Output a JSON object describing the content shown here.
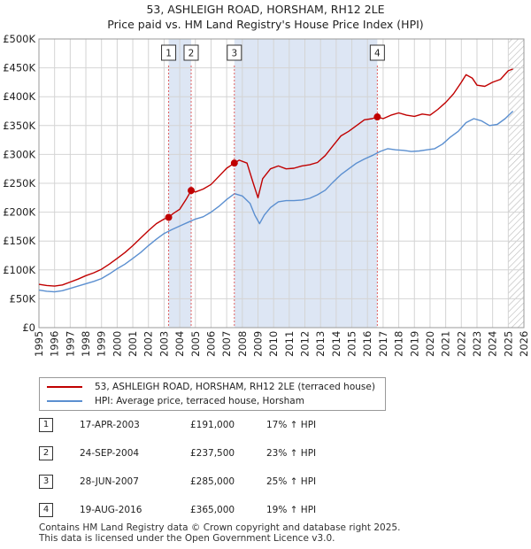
{
  "title": {
    "line1": "53, ASHLEIGH ROAD, HORSHAM, RH12 2LE",
    "line2": "Price paid vs. HM Land Registry's House Price Index (HPI)"
  },
  "legend": {
    "series_red": "53, ASHLEIGH ROAD, HORSHAM, RH12 2LE (terraced house)",
    "series_blue": "HPI: Average price, terraced house, Horsham"
  },
  "colors": {
    "red": "#c00000",
    "blue": "#5b8fd0",
    "shade": "#dde6f4",
    "marker_line": "#e06060"
  },
  "sales": [
    {
      "num": "1",
      "date": "17-APR-2003",
      "price": "£191,000",
      "hpi": "17% ↑ HPI"
    },
    {
      "num": "2",
      "date": "24-SEP-2004",
      "price": "£237,500",
      "hpi": "23% ↑ HPI"
    },
    {
      "num": "3",
      "date": "28-JUN-2007",
      "price": "£285,000",
      "hpi": "25% ↑ HPI"
    },
    {
      "num": "4",
      "date": "19-AUG-2016",
      "price": "£365,000",
      "hpi": "19% ↑ HPI"
    }
  ],
  "footer": {
    "line1": "Contains HM Land Registry data © Crown copyright and database right 2025.",
    "line2": "This data is licensed under the Open Government Licence v3.0."
  },
  "chart_data": {
    "type": "line",
    "title": "53, ASHLEIGH ROAD, HORSHAM, RH12 2LE — Price paid vs. HM Land Registry's House Price Index (HPI)",
    "xlabel": "",
    "ylabel": "",
    "xlim": [
      1995,
      2026
    ],
    "ylim": [
      0,
      500000
    ],
    "x_ticks": [
      1995,
      1996,
      1997,
      1998,
      1999,
      2000,
      2001,
      2002,
      2003,
      2004,
      2005,
      2006,
      2007,
      2008,
      2009,
      2010,
      2011,
      2012,
      2013,
      2014,
      2015,
      2016,
      2017,
      2018,
      2019,
      2020,
      2021,
      2022,
      2023,
      2024,
      2025,
      2026
    ],
    "y_ticks": [
      {
        "value": 0,
        "label": "£0"
      },
      {
        "value": 50000,
        "label": "£50K"
      },
      {
        "value": 100000,
        "label": "£100K"
      },
      {
        "value": 150000,
        "label": "£150K"
      },
      {
        "value": 200000,
        "label": "£200K"
      },
      {
        "value": 250000,
        "label": "£250K"
      },
      {
        "value": 300000,
        "label": "£300K"
      },
      {
        "value": 350000,
        "label": "£350K"
      },
      {
        "value": 400000,
        "label": "£400K"
      },
      {
        "value": 450000,
        "label": "£450K"
      },
      {
        "value": 500000,
        "label": "£500K"
      }
    ],
    "shaded_ranges": [
      [
        2003.29,
        2004.73
      ],
      [
        2007.49,
        2016.63
      ]
    ],
    "hatched_from": 2025.0,
    "markers": [
      {
        "label": "1",
        "x": 2003.29,
        "y": 191000
      },
      {
        "label": "2",
        "x": 2004.73,
        "y": 237500
      },
      {
        "label": "3",
        "x": 2007.49,
        "y": 285000
      },
      {
        "label": "4",
        "x": 2016.63,
        "y": 365000
      }
    ],
    "series": [
      {
        "name": "53, ASHLEIGH ROAD, HORSHAM, RH12 2LE (terraced house)",
        "color": "#c00000",
        "x": [
          1995,
          1995.5,
          1996,
          1996.5,
          1997,
          1997.5,
          1998,
          1998.5,
          1999,
          1999.5,
          2000,
          2000.5,
          2001,
          2001.5,
          2002,
          2002.5,
          2003,
          2003.29,
          2003.6,
          2004,
          2004.4,
          2004.73,
          2005,
          2005.5,
          2006,
          2006.5,
          2007,
          2007.49,
          2007.8,
          2008.3,
          2008.7,
          2009.0,
          2009.3,
          2009.8,
          2010.3,
          2010.8,
          2011.3,
          2011.8,
          2012.3,
          2012.8,
          2013.3,
          2013.8,
          2014.3,
          2014.8,
          2015.3,
          2015.8,
          2016.3,
          2016.63,
          2017,
          2017.5,
          2018,
          2018.5,
          2019,
          2019.5,
          2020,
          2020.5,
          2021,
          2021.5,
          2022,
          2022.3,
          2022.7,
          2023,
          2023.5,
          2024,
          2024.5,
          2025,
          2025.3
        ],
        "values": [
          75000,
          73000,
          72000,
          74000,
          79000,
          84000,
          90000,
          95000,
          101000,
          110000,
          120000,
          130000,
          142000,
          155000,
          168000,
          180000,
          188000,
          191000,
          198000,
          205000,
          222000,
          237500,
          235000,
          240000,
          248000,
          262000,
          276000,
          285000,
          290000,
          285000,
          250000,
          225000,
          258000,
          275000,
          280000,
          275000,
          276000,
          280000,
          282000,
          286000,
          298000,
          315000,
          332000,
          340000,
          350000,
          360000,
          362000,
          365000,
          362000,
          368000,
          372000,
          368000,
          366000,
          370000,
          368000,
          378000,
          390000,
          405000,
          425000,
          438000,
          432000,
          420000,
          418000,
          425000,
          430000,
          445000,
          448000
        ]
      },
      {
        "name": "HPI: Average price, terraced house, Horsham",
        "color": "#5b8fd0",
        "x": [
          1995,
          1995.5,
          1996,
          1996.5,
          1997,
          1997.5,
          1998,
          1998.5,
          1999,
          1999.5,
          2000,
          2000.5,
          2001,
          2001.5,
          2002,
          2002.5,
          2003,
          2003.5,
          2004,
          2004.5,
          2005,
          2005.5,
          2006,
          2006.5,
          2007,
          2007.5,
          2008,
          2008.5,
          2008.8,
          2009.1,
          2009.4,
          2009.8,
          2010.3,
          2010.8,
          2011.3,
          2011.8,
          2012.3,
          2012.8,
          2013.3,
          2013.8,
          2014.3,
          2014.8,
          2015.3,
          2015.8,
          2016.3,
          2016.8,
          2017.3,
          2017.8,
          2018.3,
          2018.8,
          2019.3,
          2019.8,
          2020.3,
          2020.8,
          2021.3,
          2021.8,
          2022.3,
          2022.8,
          2023.3,
          2023.8,
          2024.3,
          2024.8,
          2025.3
        ],
        "values": [
          65000,
          63000,
          62000,
          64000,
          68000,
          72000,
          76000,
          80000,
          85000,
          93000,
          102000,
          110000,
          120000,
          130000,
          142000,
          153000,
          163000,
          170000,
          176000,
          182000,
          188000,
          192000,
          200000,
          210000,
          222000,
          232000,
          228000,
          215000,
          195000,
          180000,
          195000,
          208000,
          218000,
          220000,
          220000,
          221000,
          224000,
          230000,
          238000,
          252000,
          265000,
          275000,
          285000,
          292000,
          298000,
          305000,
          310000,
          308000,
          307000,
          305000,
          306000,
          308000,
          310000,
          318000,
          330000,
          340000,
          355000,
          362000,
          358000,
          350000,
          352000,
          362000,
          375000
        ]
      }
    ]
  }
}
